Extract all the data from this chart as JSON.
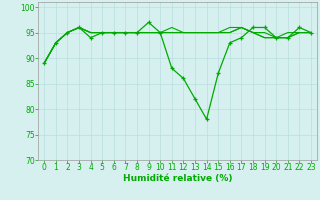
{
  "xlabel": "Humidité relative (%)",
  "xlim": [
    -0.5,
    23.5
  ],
  "ylim": [
    70,
    101
  ],
  "yticks": [
    70,
    75,
    80,
    85,
    90,
    95,
    100
  ],
  "xticks": [
    0,
    1,
    2,
    3,
    4,
    5,
    6,
    7,
    8,
    9,
    10,
    11,
    12,
    13,
    14,
    15,
    16,
    17,
    18,
    19,
    20,
    21,
    22,
    23
  ],
  "background_color": "#d6f0f0",
  "grid_color": "#b8dede",
  "line_color": "#00aa00",
  "series": [
    [
      89,
      93,
      95,
      96,
      94,
      95,
      95,
      95,
      95,
      97,
      95,
      88,
      86,
      82,
      78,
      87,
      93,
      94,
      96,
      96,
      94,
      94,
      96,
      95
    ],
    [
      89,
      93,
      95,
      96,
      95,
      95,
      95,
      95,
      95,
      95,
      95,
      95,
      95,
      95,
      95,
      95,
      95,
      96,
      95,
      94,
      94,
      94,
      95,
      95
    ],
    [
      89,
      93,
      95,
      96,
      95,
      95,
      95,
      95,
      95,
      95,
      95,
      95,
      95,
      95,
      95,
      95,
      96,
      96,
      95,
      95,
      94,
      94,
      95,
      95
    ],
    [
      89,
      93,
      95,
      96,
      95,
      95,
      95,
      95,
      95,
      95,
      95,
      96,
      95,
      95,
      95,
      95,
      95,
      96,
      95,
      94,
      94,
      95,
      95,
      95
    ]
  ]
}
